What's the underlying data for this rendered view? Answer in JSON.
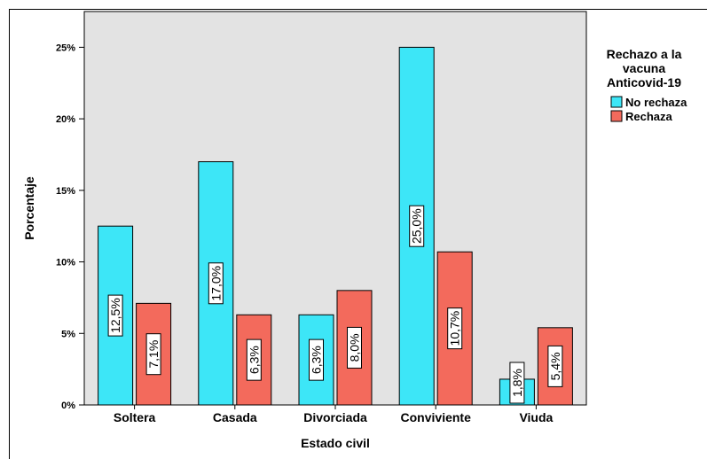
{
  "chart_data": {
    "type": "bar",
    "categories": [
      "Soltera",
      "Casada",
      "Divorciada",
      "Conviviente",
      "Viuda"
    ],
    "series": [
      {
        "name": "No rechaza",
        "color": "#3de6f7",
        "values": [
          12.5,
          17.0,
          6.3,
          25.0,
          1.8
        ],
        "labels": [
          "12,5%",
          "17,0%",
          "6,3%",
          "25,0%",
          "1,8%"
        ]
      },
      {
        "name": "Rechaza",
        "color": "#f36a5c",
        "values": [
          7.1,
          6.3,
          8.0,
          10.7,
          5.4
        ],
        "labels": [
          "7,1%",
          "6,3%",
          "8,0%",
          "10,7%",
          "5,4%"
        ]
      }
    ],
    "xlabel": "Estado civil",
    "ylabel": "Porcentaje",
    "ylim": [
      0,
      27.5
    ],
    "yticks": [
      0,
      5,
      10,
      15,
      20,
      25
    ],
    "ytick_labels": [
      "0%",
      "5%",
      "10%",
      "15%",
      "20%",
      "25%"
    ],
    "legend": {
      "title_lines": [
        "Rechazo a la",
        "vacuna",
        "Anticovid-19"
      ],
      "placement": "right"
    },
    "plot_background": "#e3e3e3",
    "grid": false
  }
}
